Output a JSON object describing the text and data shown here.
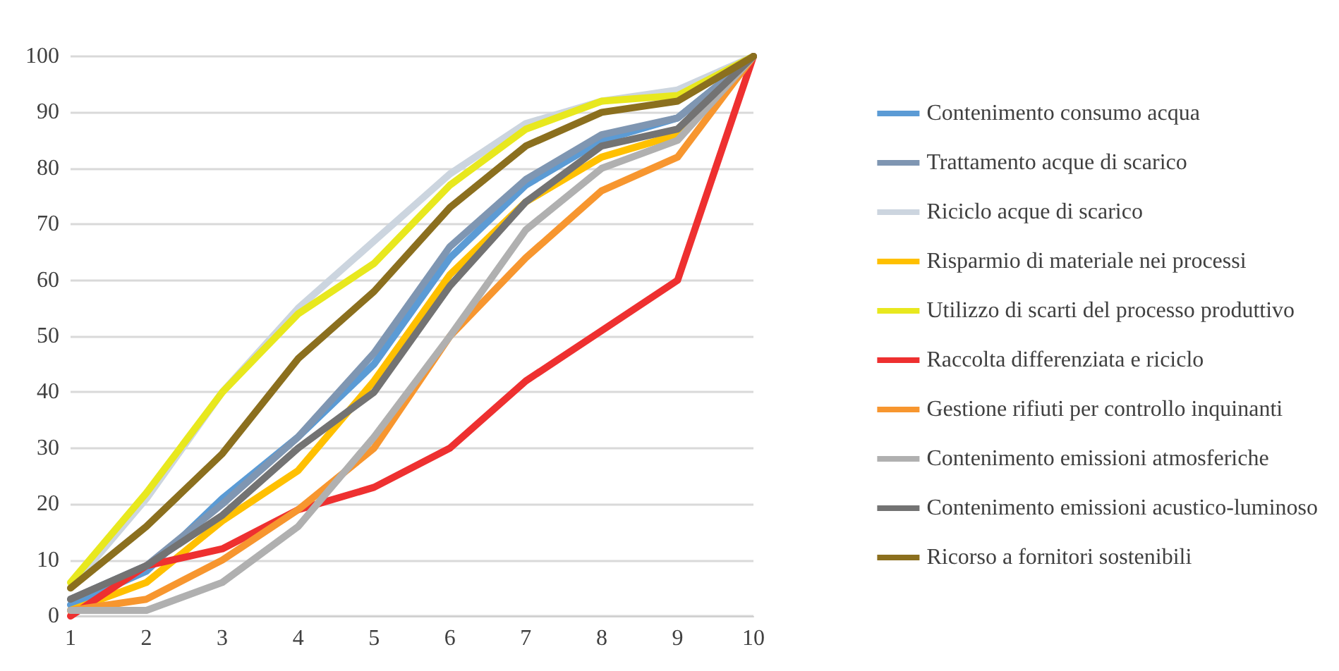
{
  "chart_data": {
    "type": "line",
    "categories": [
      "1",
      "2",
      "3",
      "4",
      "5",
      "6",
      "7",
      "8",
      "9",
      "10"
    ],
    "ylim": [
      0,
      100
    ],
    "yticks": [
      0,
      10,
      20,
      30,
      40,
      50,
      60,
      70,
      80,
      90,
      100
    ],
    "grid": "y",
    "legend": "right",
    "marker": "none",
    "line_style": "solid",
    "series": [
      {
        "name": "Contenimento consumo acqua",
        "color": "#5b9bd5",
        "values": [
          2,
          8,
          21,
          32,
          45,
          64,
          77,
          85,
          89,
          100
        ]
      },
      {
        "name": "Trattamento acque di scarico",
        "color": "#7f96b2",
        "values": [
          3,
          9,
          20,
          32,
          47,
          66,
          78,
          86,
          89,
          100
        ]
      },
      {
        "name": "Riciclo acque di scarico",
        "color": "#ccd5df",
        "values": [
          5,
          21,
          40,
          55,
          67,
          79,
          88,
          92,
          94,
          100
        ]
      },
      {
        "name": "Risparmio di materiale nei processi",
        "color": "#ffc000",
        "values": [
          1,
          6,
          17,
          26,
          42,
          61,
          74,
          82,
          86,
          100
        ]
      },
      {
        "name": "Utilizzo di scarti del processo produttivo",
        "color": "#e8e81e",
        "values": [
          6,
          22,
          40,
          54,
          63,
          77,
          87,
          92,
          93,
          100
        ]
      },
      {
        "name": "Raccolta differenziata e riciclo",
        "color": "#ee3030",
        "values": [
          0,
          9,
          12,
          19,
          23,
          30,
          42,
          51,
          60,
          100
        ]
      },
      {
        "name": "Gestione rifiuti per controllo inquinanti",
        "color": "#f7962f",
        "values": [
          1,
          3,
          10,
          19,
          30,
          50,
          64,
          76,
          82,
          100
        ]
      },
      {
        "name": "Contenimento emissioni atmosferiche",
        "color": "#b0b0b0",
        "values": [
          1,
          1,
          6,
          16,
          32,
          50,
          69,
          80,
          85,
          100
        ]
      },
      {
        "name": "Contenimento emissioni acustico-luminoso",
        "color": "#737373",
        "values": [
          3,
          9,
          18,
          30,
          40,
          59,
          74,
          84,
          87,
          100
        ]
      },
      {
        "name": "Ricorso a fornitori sostenibili",
        "color": "#8b6f1e",
        "values": [
          5,
          16,
          29,
          46,
          58,
          73,
          84,
          90,
          92,
          100
        ]
      }
    ]
  }
}
